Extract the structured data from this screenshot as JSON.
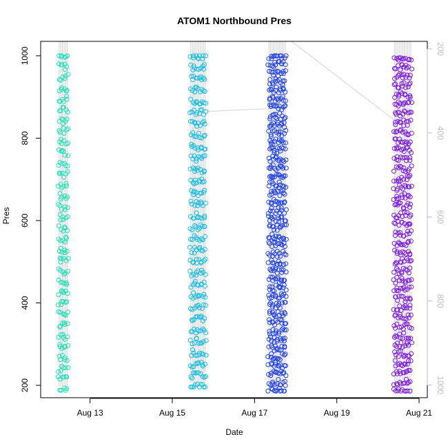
{
  "chart_data": {
    "type": "scatter",
    "title": "ATOM1 Northbound Pres",
    "xlabel": "Date",
    "ylabel": "Pres",
    "x_ticks": [
      "Aug 13",
      "Aug 15",
      "Aug 17",
      "Aug 19",
      "Aug 21"
    ],
    "x_tick_values": [
      13,
      15,
      17,
      19,
      21
    ],
    "y_ticks": [
      200,
      400,
      600,
      800,
      1000
    ],
    "right_axis_ticks": [
      200,
      400,
      600,
      800,
      1000
    ],
    "right_axis_reversed": true,
    "right_axis_color": "#bebebe",
    "xlim": [
      11.8,
      21.2
    ],
    "ylim": [
      170,
      1035
    ],
    "right_axis_range": [
      182,
      1030
    ],
    "grid": false,
    "background_line_color": "#d3d3d3",
    "point_style": "open circle",
    "series": [
      {
        "color": "#19e3b6",
        "x_range": [
          12.25,
          12.45
        ],
        "y_range": [
          188,
          1000
        ],
        "n_profiles": 6,
        "n_points": 190
      },
      {
        "color": "#12bdea",
        "x_range": [
          15.45,
          15.8
        ],
        "y_range": [
          196,
          1000
        ],
        "n_profiles": 10,
        "n_points": 300
      },
      {
        "color": "#1d3ef0",
        "x_range": [
          17.35,
          17.75
        ],
        "y_range": [
          186,
          1000
        ],
        "n_profiles": 12,
        "n_points": 480
      },
      {
        "color": "#7a17e5",
        "x_range": [
          20.4,
          20.8
        ],
        "y_range": [
          186,
          995
        ],
        "n_profiles": 11,
        "n_points": 400
      }
    ],
    "connector_lines": [
      {
        "from": [
          15.85,
          865
        ],
        "to": [
          17.45,
          872
        ]
      },
      {
        "from": [
          17.9,
          1035
        ],
        "to": [
          20.45,
          840
        ]
      }
    ]
  }
}
